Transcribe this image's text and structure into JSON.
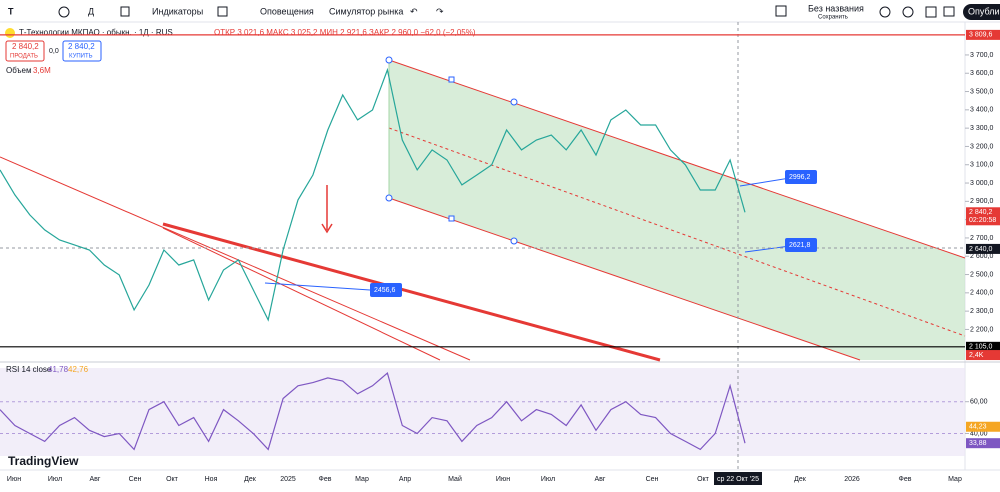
{
  "toolbar": {
    "symbol": "Т",
    "indicators": "Индикаторы",
    "alerts": "Оповещения",
    "replay": "Симулятор рынка",
    "layout_name": "Без названия",
    "layout_status": "Сохранить",
    "publish": "Опублик"
  },
  "legend": {
    "instrument": "Т-Технологии МКПАО · обыкн. · 1Д · RUS",
    "ohlc": "ОТКР 3 021,6  МАКС 3 025,2  МИН 2 921,6  ЗАКР 2 960,0  −62,0 (−2,05%)",
    "sell_price": "2 840,2",
    "sell": "ПРОДАТЬ",
    "spread": "0,0",
    "buy_price": "2 840,2",
    "buy": "КУПИТЬ",
    "volume": "Объем",
    "volume_value": "3,6M"
  },
  "chart_data": [
    {
      "type": "line",
      "color": "#26a69a",
      "values": [
        3072,
        2935,
        2826,
        2744,
        2689,
        2662,
        2634,
        2552,
        2498,
        2307,
        2443,
        2634,
        2552,
        2580,
        2361,
        2525,
        2580,
        2416,
        2252,
        2634,
        2908,
        3044,
        3290,
        3481,
        3345,
        3399,
        3618,
        3235,
        3072,
        3181,
        3126,
        2990,
        3044,
        3099,
        3290,
        3181,
        3235,
        3262,
        3181,
        3290,
        3153,
        3345,
        3399,
        3317,
        3317,
        3181,
        3099,
        2962,
        2962,
        3126,
        2840.2
      ],
      "ylim": [
        2033,
        3880
      ],
      "yticks": [
        {
          "value": 2200,
          "label": "2 200,0"
        },
        {
          "value": 2300,
          "label": "2 300,0"
        },
        {
          "value": 2400,
          "label": "2 400,0"
        },
        {
          "value": 2500,
          "label": "2 500,0"
        },
        {
          "value": 2600,
          "label": "2 600,0"
        },
        {
          "value": 2700,
          "label": "2 700,0"
        },
        {
          "value": 2800,
          "label": "2 800,0"
        },
        {
          "value": 2900,
          "label": "2 900,0"
        },
        {
          "value": 3000,
          "label": "3 000,0"
        },
        {
          "value": 3100,
          "label": "3 100,0"
        },
        {
          "value": 3200,
          "label": "3 200,0"
        },
        {
          "value": 3300,
          "label": "3 300,0"
        },
        {
          "value": 3400,
          "label": "3 400,0"
        },
        {
          "value": 3500,
          "label": "3 500,0"
        },
        {
          "value": 3600,
          "label": "3 600,0"
        },
        {
          "value": 3700,
          "label": "3 700,0"
        }
      ],
      "hlines": [
        {
          "value": 3809.6,
          "label": "3 809,6",
          "color": "#e53935"
        },
        {
          "value": 2105,
          "label": "2 105,0",
          "color": "#000000"
        }
      ],
      "badges": [
        {
          "value": 2840.2,
          "label": "2 840,2",
          "sub": "02:20:58",
          "color": "#e53935"
        },
        {
          "value": 2640,
          "label": "2 640,0",
          "color": "#131722"
        },
        {
          "value": 2060,
          "label": "2,4K",
          "color": "#e53935"
        }
      ],
      "annotations": [
        {
          "value": 2996.2,
          "label": "2996,2"
        },
        {
          "value": 2621.8,
          "label": "2621,8"
        },
        {
          "value": 2456.6,
          "label": "2456,6"
        }
      ],
      "x_labels": [
        "Июн",
        "Июл",
        "Авг",
        "Сен",
        "Окт",
        "Ноя",
        "Дек",
        "2025",
        "Фев",
        "Мар",
        "Апр",
        "Май",
        "Июн",
        "Июл",
        "Авг",
        "Сен",
        "Окт",
        "ср 22 Окт '25",
        "Дек",
        "2026",
        "Фев",
        "Мар"
      ]
    },
    {
      "type": "line",
      "title": "RSI 14 close",
      "value_text": "41,78",
      "ma_text": "42,76",
      "color": "#7e57c2",
      "ma_color": "#f5a623",
      "values": [
        55,
        45,
        40,
        35,
        45,
        50,
        42,
        38,
        40,
        30,
        55,
        60,
        45,
        50,
        35,
        55,
        48,
        40,
        30,
        62,
        70,
        72,
        75,
        73,
        65,
        70,
        78,
        45,
        40,
        50,
        48,
        35,
        45,
        50,
        60,
        48,
        55,
        52,
        45,
        58,
        42,
        55,
        60,
        52,
        50,
        40,
        35,
        30,
        40,
        70,
        33.88
      ],
      "ylim": [
        17,
        85
      ],
      "yticks": [
        {
          "value": 60,
          "label": "60,00"
        },
        {
          "value": 40,
          "label": "40,00"
        }
      ],
      "badges": [
        {
          "value": 44.23,
          "label": "44,23",
          "color": "#f5a623"
        },
        {
          "value": 33.88,
          "label": "33,88",
          "color": "#7e57c2"
        }
      ]
    }
  ],
  "brand": "TradingView"
}
